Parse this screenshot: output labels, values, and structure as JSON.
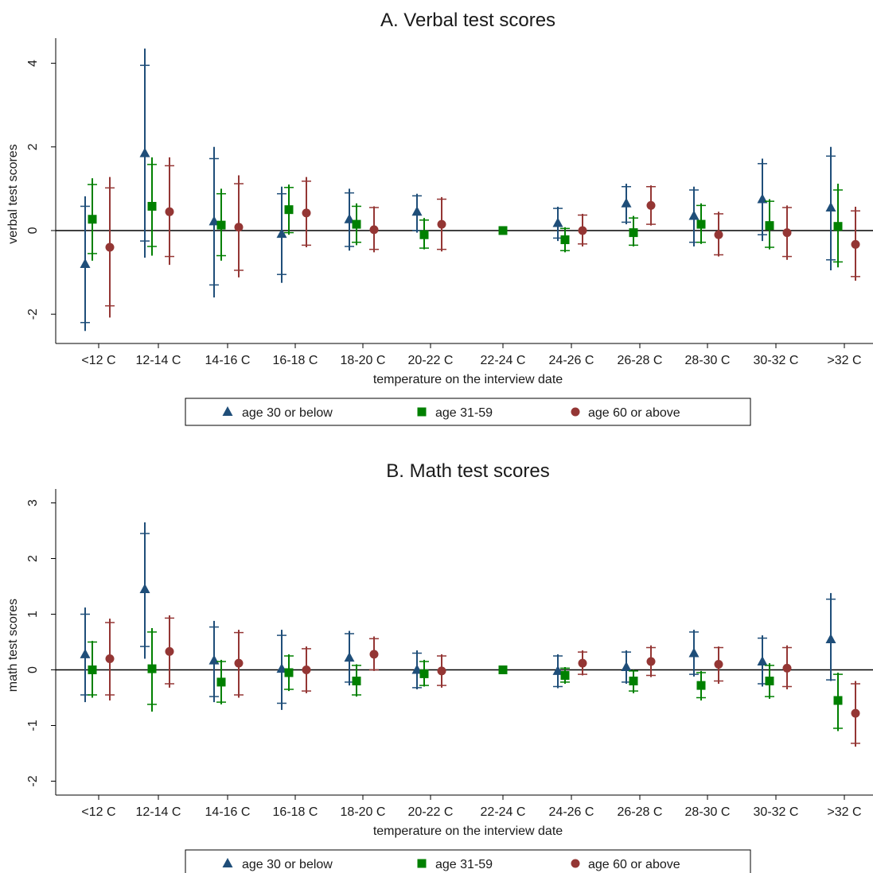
{
  "chart_data": [
    {
      "type": "scatter",
      "title": "A. Verbal test scores",
      "xlabel": "temperature on the interview date",
      "ylabel": "verbal test scores",
      "categories": [
        "<12 C",
        "12-14 C",
        "14-16 C",
        "16-18 C",
        "18-20 C",
        "20-22 C",
        "22-24 C",
        "24-26 C",
        "26-28 C",
        "28-30 C",
        "30-32 C",
        ">32 C"
      ],
      "yticks": [
        "-2",
        "0",
        "2",
        "4"
      ],
      "ylim": [
        -2.7,
        4.6
      ],
      "reference_line": 0,
      "grid": false,
      "legend_position": "bottom",
      "series": [
        {
          "name": "age 30 or below",
          "marker": "triangle",
          "color": "#1f4e79",
          "values": [
            -0.8,
            1.85,
            0.22,
            -0.08,
            0.27,
            0.45,
            null,
            0.18,
            0.65,
            0.35,
            0.75,
            0.55
          ],
          "ci_inner": [
            [
              -2.2,
              0.58
            ],
            [
              -0.25,
              3.95
            ],
            [
              -1.3,
              1.72
            ],
            [
              -1.05,
              0.88
            ],
            [
              -0.38,
              0.9
            ],
            [
              0.0,
              0.83
            ],
            null,
            [
              -0.18,
              0.53
            ],
            [
              0.2,
              1.05
            ],
            [
              -0.28,
              0.97
            ],
            [
              -0.1,
              1.6
            ],
            [
              -0.7,
              1.78
            ]
          ],
          "ci_outer": [
            [
              -2.4,
              0.82
            ],
            [
              -0.65,
              4.35
            ],
            [
              -1.6,
              2.0
            ],
            [
              -1.25,
              1.05
            ],
            [
              -0.48,
              1.0
            ],
            [
              -0.05,
              0.88
            ],
            null,
            [
              -0.25,
              0.57
            ],
            [
              0.15,
              1.12
            ],
            [
              -0.38,
              1.05
            ],
            [
              -0.25,
              1.72
            ],
            [
              -0.95,
              2.0
            ]
          ]
        },
        {
          "name": "age 31-59",
          "marker": "square",
          "color": "#008000",
          "values": [
            0.27,
            0.58,
            0.13,
            0.5,
            0.15,
            -0.1,
            0.0,
            -0.22,
            -0.05,
            0.15,
            0.12,
            0.1
          ],
          "ci_inner": [
            [
              -0.55,
              1.1
            ],
            [
              -0.38,
              1.58
            ],
            [
              -0.6,
              0.88
            ],
            [
              -0.05,
              1.03
            ],
            [
              -0.28,
              0.58
            ],
            [
              -0.42,
              0.25
            ],
            null,
            [
              -0.48,
              0.05
            ],
            [
              -0.35,
              0.3
            ],
            [
              -0.28,
              0.6
            ],
            [
              -0.4,
              0.7
            ],
            [
              -0.75,
              0.97
            ]
          ],
          "ci_outer": [
            [
              -0.72,
              1.25
            ],
            [
              -0.6,
              1.75
            ],
            [
              -0.72,
              1.0
            ],
            [
              -0.1,
              1.1
            ],
            [
              -0.35,
              0.65
            ],
            [
              -0.45,
              0.3
            ],
            null,
            [
              -0.52,
              0.08
            ],
            [
              -0.38,
              0.35
            ],
            [
              -0.32,
              0.65
            ],
            [
              -0.45,
              0.75
            ],
            [
              -0.88,
              1.12
            ]
          ]
        },
        {
          "name": "age 60 or above",
          "marker": "circle",
          "color": "#943634",
          "values": [
            -0.4,
            0.45,
            0.08,
            0.42,
            0.02,
            0.15,
            null,
            0.0,
            0.6,
            -0.1,
            -0.05,
            -0.33
          ],
          "ci_inner": [
            [
              -1.8,
              1.02
            ],
            [
              -0.62,
              1.55
            ],
            [
              -0.95,
              1.12
            ],
            [
              -0.35,
              1.18
            ],
            [
              -0.45,
              0.55
            ],
            [
              -0.45,
              0.75
            ],
            null,
            [
              -0.32,
              0.37
            ],
            [
              0.15,
              1.05
            ],
            [
              -0.58,
              0.4
            ],
            [
              -0.62,
              0.55
            ],
            [
              -1.1,
              0.47
            ]
          ],
          "ci_outer": [
            [
              -2.08,
              1.28
            ],
            [
              -0.82,
              1.75
            ],
            [
              -1.12,
              1.32
            ],
            [
              -0.4,
              1.28
            ],
            [
              -0.52,
              0.58
            ],
            [
              -0.5,
              0.8
            ],
            null,
            [
              -0.38,
              0.4
            ],
            [
              0.12,
              1.08
            ],
            [
              -0.62,
              0.45
            ],
            [
              -0.7,
              0.6
            ],
            [
              -1.2,
              0.57
            ]
          ]
        }
      ]
    },
    {
      "type": "scatter",
      "title": "B. Math test scores",
      "xlabel": "temperature on the interview date",
      "ylabel": "math test scores",
      "categories": [
        "<12 C",
        "12-14 C",
        "14-16 C",
        "16-18 C",
        "18-20 C",
        "20-22 C",
        "22-24 C",
        "24-26 C",
        "26-28 C",
        "28-30 C",
        "30-32 C",
        ">32 C"
      ],
      "yticks": [
        "-2",
        "-1",
        "0",
        "1",
        "2",
        "3"
      ],
      "ylim": [
        -2.25,
        3.25
      ],
      "reference_line": 0,
      "grid": false,
      "legend_position": "bottom",
      "series": [
        {
          "name": "age 30 or below",
          "marker": "triangle",
          "color": "#1f4e79",
          "values": [
            0.28,
            1.45,
            0.17,
            0.02,
            0.22,
            0.0,
            null,
            -0.02,
            0.05,
            0.3,
            0.15,
            0.55
          ],
          "ci_inner": [
            [
              -0.45,
              1.0
            ],
            [
              0.42,
              2.45
            ],
            [
              -0.48,
              0.77
            ],
            [
              -0.6,
              0.62
            ],
            [
              -0.22,
              0.65
            ],
            [
              -0.32,
              0.3
            ],
            null,
            [
              -0.3,
              0.25
            ],
            [
              -0.22,
              0.32
            ],
            [
              -0.08,
              0.68
            ],
            [
              -0.25,
              0.57
            ],
            [
              -0.18,
              1.27
            ]
          ],
          "ci_outer": [
            [
              -0.58,
              1.12
            ],
            [
              0.2,
              2.65
            ],
            [
              -0.58,
              0.88
            ],
            [
              -0.72,
              0.72
            ],
            [
              -0.28,
              0.7
            ],
            [
              -0.35,
              0.35
            ],
            null,
            [
              -0.33,
              0.28
            ],
            [
              -0.25,
              0.35
            ],
            [
              -0.12,
              0.72
            ],
            [
              -0.3,
              0.62
            ],
            [
              -0.2,
              1.38
            ]
          ]
        },
        {
          "name": "age 31-59",
          "marker": "square",
          "color": "#008000",
          "values": [
            0.0,
            0.02,
            -0.22,
            -0.05,
            -0.2,
            -0.07,
            0.0,
            -0.1,
            -0.2,
            -0.28,
            -0.2,
            -0.55
          ],
          "ci_inner": [
            [
              -0.45,
              0.5
            ],
            [
              -0.62,
              0.68
            ],
            [
              -0.58,
              0.15
            ],
            [
              -0.35,
              0.25
            ],
            [
              -0.45,
              0.08
            ],
            [
              -0.28,
              0.15
            ],
            null,
            [
              -0.22,
              0.03
            ],
            [
              -0.38,
              -0.02
            ],
            [
              -0.5,
              -0.05
            ],
            [
              -0.48,
              0.08
            ],
            [
              -1.05,
              -0.08
            ]
          ],
          "ci_outer": [
            [
              -0.5,
              0.52
            ],
            [
              -0.75,
              0.75
            ],
            [
              -0.62,
              0.18
            ],
            [
              -0.38,
              0.28
            ],
            [
              -0.48,
              0.1
            ],
            [
              -0.3,
              0.18
            ],
            null,
            [
              -0.25,
              0.05
            ],
            [
              -0.42,
              0.0
            ],
            [
              -0.55,
              -0.02
            ],
            [
              -0.52,
              0.12
            ],
            [
              -1.1,
              -0.05
            ]
          ]
        },
        {
          "name": "age 60 or above",
          "marker": "circle",
          "color": "#943634",
          "values": [
            0.2,
            0.33,
            0.12,
            0.0,
            0.28,
            -0.02,
            null,
            0.12,
            0.15,
            0.1,
            0.03,
            -0.78
          ],
          "ci_inner": [
            [
              -0.45,
              0.85
            ],
            [
              -0.25,
              0.93
            ],
            [
              -0.45,
              0.67
            ],
            [
              -0.38,
              0.38
            ],
            [
              0.0,
              0.56
            ],
            [
              -0.28,
              0.25
            ],
            null,
            [
              -0.08,
              0.32
            ],
            [
              -0.1,
              0.4
            ],
            [
              -0.2,
              0.4
            ],
            [
              -0.3,
              0.4
            ],
            [
              -1.32,
              -0.25
            ]
          ],
          "ci_outer": [
            [
              -0.55,
              0.92
            ],
            [
              -0.32,
              0.98
            ],
            [
              -0.5,
              0.72
            ],
            [
              -0.42,
              0.42
            ],
            [
              -0.02,
              0.6
            ],
            [
              -0.32,
              0.28
            ],
            null,
            [
              -0.1,
              0.35
            ],
            [
              -0.13,
              0.44
            ],
            [
              -0.25,
              0.42
            ],
            [
              -0.35,
              0.44
            ],
            [
              -1.38,
              -0.2
            ]
          ]
        }
      ]
    }
  ]
}
